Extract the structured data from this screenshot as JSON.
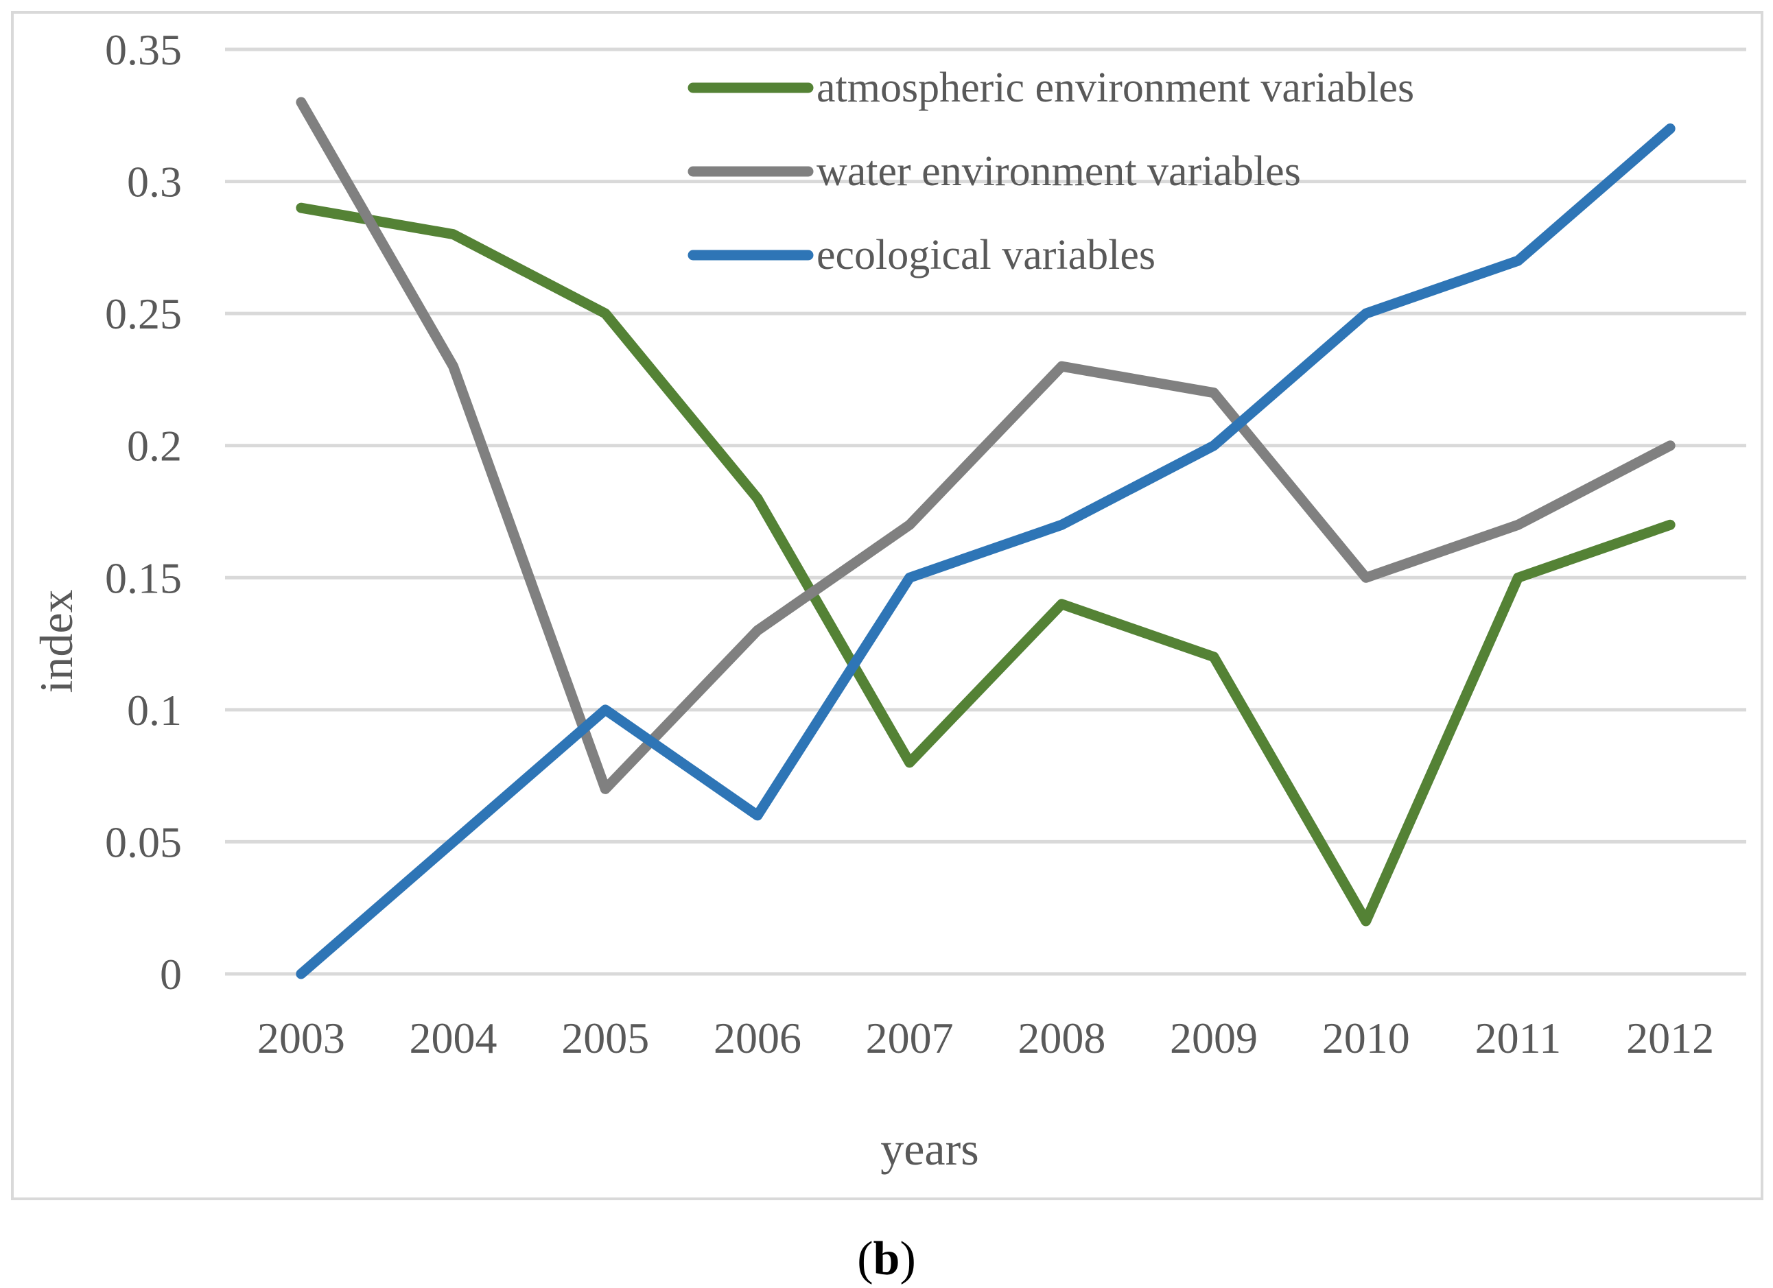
{
  "chart_data": {
    "type": "line",
    "title": "",
    "xlabel": "years",
    "ylabel": "index",
    "categories": [
      "2003",
      "2004",
      "2005",
      "2006",
      "2007",
      "2008",
      "2009",
      "2010",
      "2011",
      "2012"
    ],
    "ylim": [
      0,
      0.35
    ],
    "yticks": [
      0,
      0.05,
      0.1,
      0.15,
      0.2,
      0.25,
      0.3,
      0.35
    ],
    "ytick_labels": [
      "0",
      "0.05",
      "0.1",
      "0.15",
      "0.2",
      "0.25",
      "0.3",
      "0.35"
    ],
    "grid": true,
    "legend_position": "top-right",
    "series": [
      {
        "name": "atmospheric environment variables",
        "color": "#548235",
        "values": [
          0.29,
          0.28,
          0.25,
          0.18,
          0.08,
          0.14,
          0.12,
          0.02,
          0.15,
          0.17
        ]
      },
      {
        "name": "water environment variables",
        "color": "#808080",
        "values": [
          0.33,
          0.23,
          0.07,
          0.13,
          0.17,
          0.23,
          0.22,
          0.15,
          0.17,
          0.2
        ]
      },
      {
        "name": "ecological variables",
        "color": "#2E75B6",
        "values": [
          0.0,
          0.05,
          0.1,
          0.06,
          0.15,
          0.17,
          0.2,
          0.25,
          0.27,
          0.32
        ]
      }
    ],
    "caption": {
      "open": "(",
      "letter": "b",
      "close": ")"
    }
  }
}
